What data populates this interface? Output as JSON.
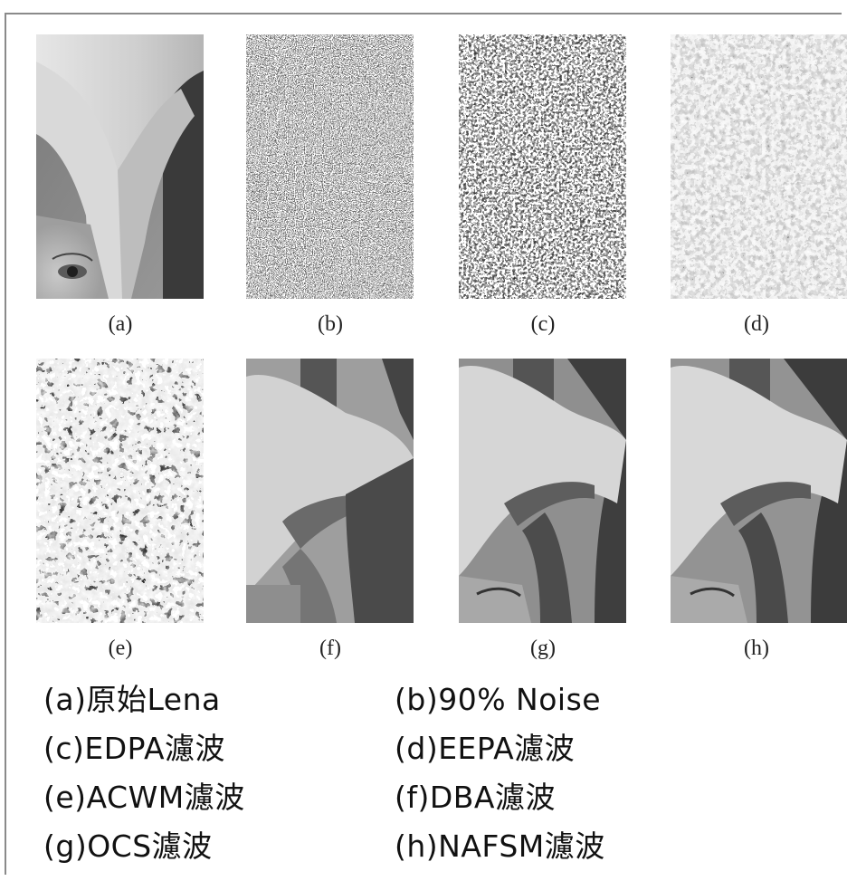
{
  "panels": [
    {
      "id": "a",
      "tag": "(a)"
    },
    {
      "id": "b",
      "tag": "(b)"
    },
    {
      "id": "c",
      "tag": "(c)"
    },
    {
      "id": "d",
      "tag": "(d)"
    },
    {
      "id": "e",
      "tag": "(e)"
    },
    {
      "id": "f",
      "tag": "(f)"
    },
    {
      "id": "g",
      "tag": "(g)"
    },
    {
      "id": "h",
      "tag": "(h)"
    }
  ],
  "captions": {
    "left": [
      "(a)原始Lena",
      "(c)EDPA濾波",
      "(e)ACWM濾波",
      "(g)OCS濾波"
    ],
    "right": [
      "(b)90% Noise",
      "(d)EEPA濾波",
      "(f)DBA濾波",
      "(h)NAFSM濾波"
    ]
  }
}
